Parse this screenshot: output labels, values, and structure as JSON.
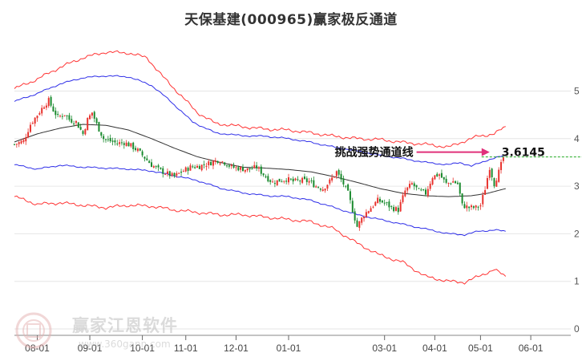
{
  "title": "天保基建(000965)赢家极反通道",
  "watermark": {
    "brand": "赢家江恩软件",
    "url": "www.360gann.com"
  },
  "colors": {
    "up": "#e8322d",
    "down": "#1a8a2e",
    "mid_line": "#333333",
    "inner_band": "#2e2ee8",
    "outer_band": "#ff3333",
    "arrow": "#e0307a",
    "dashed": "#22aa22"
  },
  "chart_data": {
    "type": "candlestick",
    "title": "天保基建(000965)赢家极反通道",
    "y_ticks": [
      {
        "value": 5,
        "label": "5"
      },
      {
        "value": 4,
        "label": "4"
      },
      {
        "value": 3,
        "label": "3"
      },
      {
        "value": 2,
        "label": "2"
      },
      {
        "value": 1,
        "label": "1"
      },
      {
        "value": 0,
        "label": "0"
      }
    ],
    "ylim": [
      0,
      5.85
    ],
    "x_ticks": [
      {
        "i": 10,
        "label": "08-01"
      },
      {
        "i": 33,
        "label": "09-01"
      },
      {
        "i": 56,
        "label": "10-01"
      },
      {
        "i": 75,
        "label": "11-01"
      },
      {
        "i": 97,
        "label": "12-01"
      },
      {
        "i": 120,
        "label": "01-01"
      },
      {
        "i": 162,
        "label": "03-01"
      },
      {
        "i": 184,
        "label": "04-01"
      },
      {
        "i": 204,
        "label": "05-01"
      },
      {
        "i": 226,
        "label": "06-01"
      }
    ],
    "n_bars": 215,
    "x_max_index": 241,
    "closes_anchor": [
      [
        0,
        3.88
      ],
      [
        4,
        3.95
      ],
      [
        7,
        4.3
      ],
      [
        10,
        4.5
      ],
      [
        13,
        4.7
      ],
      [
        15,
        4.8
      ],
      [
        17,
        4.6
      ],
      [
        19,
        4.45
      ],
      [
        22,
        4.52
      ],
      [
        24,
        4.4
      ],
      [
        27,
        4.35
      ],
      [
        30,
        4.1
      ],
      [
        32,
        4.4
      ],
      [
        34,
        4.55
      ],
      [
        36,
        4.3
      ],
      [
        39,
        4.0
      ],
      [
        42,
        3.95
      ],
      [
        45,
        3.9
      ],
      [
        48,
        3.92
      ],
      [
        51,
        3.85
      ],
      [
        54,
        3.75
      ],
      [
        57,
        3.6
      ],
      [
        60,
        3.45
      ],
      [
        63,
        3.35
      ],
      [
        66,
        3.28
      ],
      [
        70,
        3.2
      ],
      [
        73,
        3.3
      ],
      [
        77,
        3.4
      ],
      [
        81,
        3.42
      ],
      [
        85,
        3.48
      ],
      [
        89,
        3.55
      ],
      [
        92,
        3.5
      ],
      [
        95,
        3.4
      ],
      [
        98,
        3.38
      ],
      [
        102,
        3.35
      ],
      [
        106,
        3.4
      ],
      [
        110,
        3.2
      ],
      [
        113,
        3.08
      ],
      [
        116,
        3.12
      ],
      [
        119,
        3.15
      ],
      [
        122,
        3.1
      ],
      [
        126,
        3.12
      ],
      [
        129,
        3.1
      ],
      [
        132,
        3.0
      ],
      [
        135,
        2.95
      ],
      [
        138,
        3.1
      ],
      [
        141,
        3.3
      ],
      [
        144,
        3.05
      ],
      [
        146,
        2.85
      ],
      [
        148,
        2.5
      ],
      [
        150,
        2.15
      ],
      [
        153,
        2.4
      ],
      [
        156,
        2.55
      ],
      [
        159,
        2.7
      ],
      [
        162,
        2.65
      ],
      [
        165,
        2.55
      ],
      [
        168,
        2.5
      ],
      [
        171,
        2.9
      ],
      [
        174,
        3.05
      ],
      [
        177,
        2.9
      ],
      [
        180,
        2.85
      ],
      [
        183,
        3.2
      ],
      [
        186,
        3.25
      ],
      [
        189,
        3.05
      ],
      [
        192,
        3.1
      ],
      [
        194,
        3.05
      ],
      [
        196,
        2.6
      ],
      [
        199,
        2.55
      ],
      [
        202,
        2.55
      ],
      [
        204,
        2.6
      ],
      [
        206,
        2.95
      ],
      [
        208,
        3.4
      ],
      [
        210,
        3.05
      ],
      [
        212,
        3.3
      ],
      [
        214,
        3.6
      ]
    ],
    "mid_line_anchor": [
      [
        0,
        3.93
      ],
      [
        10,
        4.1
      ],
      [
        20,
        4.22
      ],
      [
        30,
        4.3
      ],
      [
        40,
        4.28
      ],
      [
        50,
        4.18
      ],
      [
        60,
        4.0
      ],
      [
        70,
        3.8
      ],
      [
        80,
        3.62
      ],
      [
        90,
        3.5
      ],
      [
        100,
        3.4
      ],
      [
        110,
        3.38
      ],
      [
        120,
        3.35
      ],
      [
        130,
        3.3
      ],
      [
        140,
        3.2
      ],
      [
        150,
        3.08
      ],
      [
        160,
        2.95
      ],
      [
        170,
        2.85
      ],
      [
        180,
        2.8
      ],
      [
        190,
        2.78
      ],
      [
        200,
        2.8
      ],
      [
        207,
        2.85
      ],
      [
        215,
        2.95
      ]
    ],
    "bands": [
      {
        "name": "inner_upper",
        "color": "#2e2ee8",
        "anchor": [
          [
            0,
            4.78
          ],
          [
            10,
            4.95
          ],
          [
            20,
            5.15
          ],
          [
            30,
            5.28
          ],
          [
            40,
            5.32
          ],
          [
            50,
            5.3
          ],
          [
            60,
            5.12
          ],
          [
            68,
            4.8
          ],
          [
            78,
            4.35
          ],
          [
            88,
            4.12
          ],
          [
            100,
            4.06
          ],
          [
            110,
            4.05
          ],
          [
            120,
            4.0
          ],
          [
            130,
            3.92
          ],
          [
            140,
            3.82
          ],
          [
            150,
            3.74
          ],
          [
            160,
            3.65
          ],
          [
            170,
            3.58
          ],
          [
            180,
            3.5
          ],
          [
            190,
            3.45
          ],
          [
            195,
            3.5
          ],
          [
            200,
            3.42
          ],
          [
            207,
            3.55
          ],
          [
            215,
            3.65
          ]
        ]
      },
      {
        "name": "inner_lower",
        "color": "#2e2ee8",
        "anchor": [
          [
            0,
            3.45
          ],
          [
            10,
            3.36
          ],
          [
            20,
            3.44
          ],
          [
            30,
            3.4
          ],
          [
            40,
            3.38
          ],
          [
            50,
            3.36
          ],
          [
            60,
            3.32
          ],
          [
            70,
            3.22
          ],
          [
            80,
            3.12
          ],
          [
            90,
            2.96
          ],
          [
            100,
            2.86
          ],
          [
            110,
            2.8
          ],
          [
            120,
            2.78
          ],
          [
            130,
            2.7
          ],
          [
            140,
            2.55
          ],
          [
            150,
            2.4
          ],
          [
            160,
            2.3
          ],
          [
            170,
            2.2
          ],
          [
            180,
            2.1
          ],
          [
            190,
            2.0
          ],
          [
            197,
            1.98
          ],
          [
            203,
            2.05
          ],
          [
            210,
            2.08
          ],
          [
            215,
            2.05
          ]
        ]
      },
      {
        "name": "outer_upper",
        "color": "#ff3333",
        "anchor": [
          [
            0,
            5.05
          ],
          [
            10,
            5.25
          ],
          [
            20,
            5.5
          ],
          [
            30,
            5.7
          ],
          [
            40,
            5.82
          ],
          [
            50,
            5.8
          ],
          [
            58,
            5.7
          ],
          [
            65,
            5.3
          ],
          [
            72,
            4.95
          ],
          [
            80,
            4.55
          ],
          [
            88,
            4.32
          ],
          [
            100,
            4.25
          ],
          [
            110,
            4.2
          ],
          [
            120,
            4.18
          ],
          [
            130,
            4.12
          ],
          [
            140,
            4.05
          ],
          [
            150,
            4.0
          ],
          [
            160,
            3.98
          ],
          [
            170,
            3.92
          ],
          [
            180,
            3.88
          ],
          [
            190,
            3.82
          ],
          [
            197,
            3.95
          ],
          [
            203,
            4.05
          ],
          [
            210,
            4.1
          ],
          [
            215,
            4.25
          ]
        ]
      },
      {
        "name": "outer_lower",
        "color": "#ff3333",
        "anchor": [
          [
            0,
            2.78
          ],
          [
            10,
            2.62
          ],
          [
            20,
            2.65
          ],
          [
            30,
            2.6
          ],
          [
            40,
            2.55
          ],
          [
            50,
            2.6
          ],
          [
            60,
            2.58
          ],
          [
            70,
            2.5
          ],
          [
            80,
            2.45
          ],
          [
            90,
            2.4
          ],
          [
            100,
            2.4
          ],
          [
            110,
            2.35
          ],
          [
            120,
            2.3
          ],
          [
            130,
            2.25
          ],
          [
            140,
            2.1
          ],
          [
            150,
            1.8
          ],
          [
            160,
            1.55
          ],
          [
            170,
            1.4
          ],
          [
            180,
            1.1
          ],
          [
            190,
            1.0
          ],
          [
            197,
            0.98
          ],
          [
            203,
            1.1
          ],
          [
            210,
            1.25
          ],
          [
            215,
            1.1
          ]
        ]
      }
    ],
    "annotation": {
      "label": "挑战强势通道线",
      "value_label": "3.6145",
      "value": 3.6145,
      "arrow_from_i": 176,
      "arrow_to_i": 208
    }
  }
}
